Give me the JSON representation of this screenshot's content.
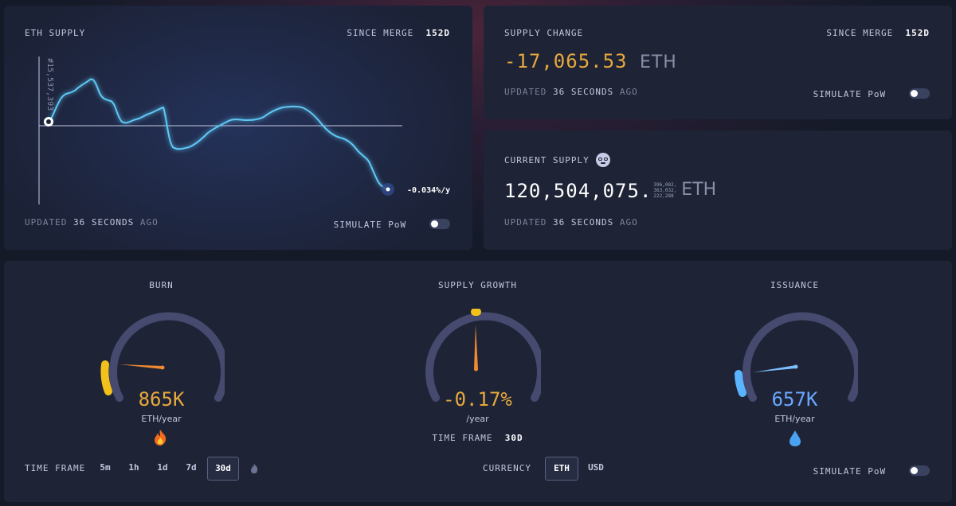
{
  "supply_chart": {
    "title": "ETH SUPPLY",
    "since_label": "SINCE MERGE",
    "since_value": "152d",
    "block_label": "#15,537,393",
    "rate_label": "-0.034%/y",
    "updated_prefix": "UPDATED",
    "updated_value": "36 SECONDS",
    "updated_suffix": "AGO",
    "simulate_label": "SIMULATE PoW",
    "line_color": "#5ec8f5"
  },
  "supply_change": {
    "title": "SUPPLY CHANGE",
    "since_label": "SINCE MERGE",
    "since_value": "152d",
    "amount": "-17,065.53",
    "unit": "ETH",
    "amount_color": "#e8a93c",
    "updated_prefix": "UPDATED",
    "updated_value": "36 SECONDS",
    "updated_suffix": "AGO",
    "simulate_label": "SIMULATE PoW"
  },
  "current_supply": {
    "title": "CURRENT SUPPLY",
    "icon": "nerd-face-icon",
    "amount": "120,504,075.",
    "decimals_line1": "396,082,",
    "decimals_line2": "363,032,",
    "decimals_line3": "222,288",
    "unit": "ETH",
    "updated_prefix": "UPDATED",
    "updated_value": "36 SECONDS",
    "updated_suffix": "AGO"
  },
  "gauges": {
    "burn": {
      "title": "BURN",
      "value": "865K",
      "unit": "ETH/year",
      "value_color": "#e8a93c",
      "icon": "fire-icon"
    },
    "supply_growth": {
      "title": "SUPPLY GROWTH",
      "value": "-0.17%",
      "unit": "/year",
      "value_color": "#e8a93c",
      "timeframe_label": "TIME FRAME",
      "timeframe_value": "30d"
    },
    "issuance": {
      "title": "ISSUANCE",
      "value": "657K",
      "unit": "ETH/year",
      "value_color": "#6aa7ff",
      "icon": "droplet-icon"
    }
  },
  "bottom_controls": {
    "timeframe_label": "TIME FRAME",
    "timeframes": [
      "5m",
      "1h",
      "1d",
      "7d",
      "30d"
    ],
    "active_timeframe": "30d",
    "currency_label": "CURRENCY",
    "currencies": [
      "ETH",
      "USD"
    ],
    "active_currency": "ETH",
    "simulate_label": "SIMULATE PoW"
  }
}
